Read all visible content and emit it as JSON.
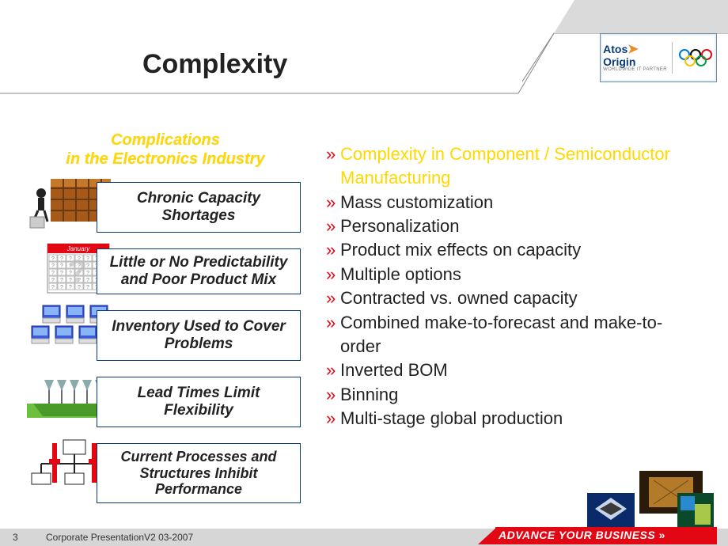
{
  "title": "Complexity",
  "brand": {
    "name_top": "Atos",
    "name_bottom": "Origin",
    "sub": "WORLDWIDE IT PARTNER",
    "ring_colors": [
      "#0078d0",
      "#000000",
      "#e30613",
      "#f7c300",
      "#009e49"
    ]
  },
  "left": {
    "heading_line1": "Complications",
    "heading_line2": "in the Electronics Industry",
    "boxes": [
      {
        "icon": "shelf",
        "text": "Chronic Capacity Shortages"
      },
      {
        "icon": "calendar",
        "text": "Little or No Predictability and Poor Product Mix"
      },
      {
        "icon": "computers",
        "text": "Inventory Used to Cover Problems"
      },
      {
        "icon": "ship",
        "text": "Lead Times Limit Flexibility"
      },
      {
        "icon": "orgchart",
        "text": "Current Processes and Structures Inhibit Performance"
      }
    ]
  },
  "bullets": [
    {
      "text": "Complexity in Component / Semiconductor Manufacturing",
      "highlight": true
    },
    {
      "text": "Mass customization"
    },
    {
      "text": "Personalization"
    },
    {
      "text": "Product mix effects on capacity"
    },
    {
      "text": "Multiple options"
    },
    {
      "text": "Contracted vs. owned capacity"
    },
    {
      "text": "Combined make-to-forecast and make-to-order"
    },
    {
      "text": "Inverted BOM"
    },
    {
      "text": "Binning"
    },
    {
      "text": "Multi-stage global production"
    }
  ],
  "bullet_marker": "»",
  "colors": {
    "highlight": "#ffd800",
    "red": "#e30613",
    "navy": "#083a7a",
    "footer_band": "#d6d6d6"
  },
  "footer": {
    "page": "3",
    "text": "Corporate PresentationV2 03-2007",
    "tagline": "ADVANCE YOUR BUSINESS",
    "tagline_chevrons": "»"
  }
}
